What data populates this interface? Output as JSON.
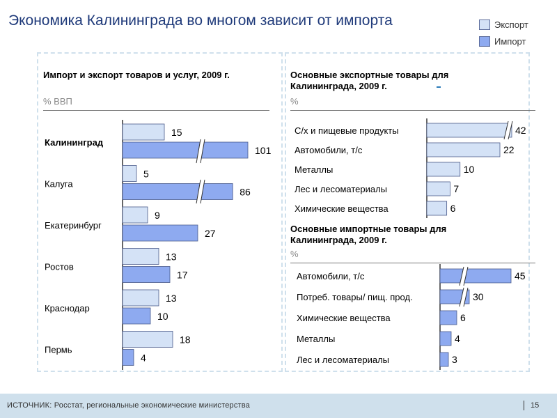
{
  "page": {
    "title": "Экономика Калининграда во многом зависит от импорта",
    "legend": [
      {
        "label": "Экспорт",
        "color": "#d4e2f6"
      },
      {
        "label": "Импорт",
        "color": "#8eaaf0"
      }
    ],
    "footer": {
      "source": "ИСТОЧНИК:  Росстат,  региональные  экономические  министерства",
      "page_number": "15"
    }
  },
  "chart_data": [
    {
      "type": "bar",
      "orientation": "horizontal",
      "title": "Импорт и экспорт товаров и услуг, 2009 г.",
      "unit": "% ВВП",
      "categories": [
        "Калининград",
        "Калуга",
        "Екатеринбург",
        "Ростов",
        "Краснодар",
        "Пермь"
      ],
      "bold_category": "Калининград",
      "series": [
        {
          "name": "Экспорт",
          "values": [
            15,
            5,
            9,
            13,
            13,
            18
          ]
        },
        {
          "name": "Импорт",
          "values": [
            101,
            86,
            27,
            17,
            10,
            4
          ]
        }
      ],
      "axis_break": true
    },
    {
      "type": "bar",
      "orientation": "horizontal",
      "title": "Основные экспортные товары для Калининграда, 2009 г.",
      "unit": "%",
      "categories": [
        "С/х и пищевые продукты",
        "Автомобили, т/с",
        "Металлы",
        "Лес и лесоматериалы",
        "Химические вещества"
      ],
      "series": [
        {
          "name": "Экспорт",
          "values": [
            42,
            22,
            10,
            7,
            6
          ]
        }
      ],
      "axis_break": true
    },
    {
      "type": "bar",
      "orientation": "horizontal",
      "title": "Основные импортные товары для Калининграда, 2009 г.",
      "unit": "%",
      "categories": [
        "Автомобили, т/с",
        "Потреб. товары/ пищ.  прод.",
        "Химические вещества",
        "Металлы",
        "Лес и лесоматериалы"
      ],
      "series": [
        {
          "name": "Импорт",
          "values": [
            45,
            30,
            6,
            4,
            3
          ]
        }
      ],
      "axis_break": true
    }
  ]
}
